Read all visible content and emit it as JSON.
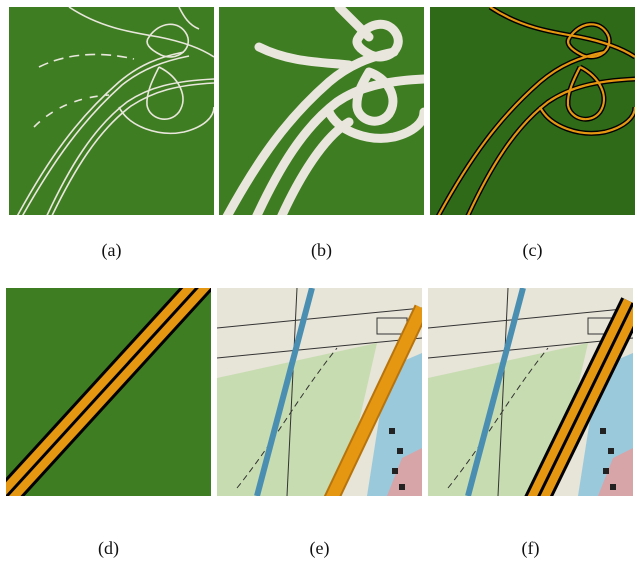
{
  "figure": {
    "panels": [
      {
        "id": "a",
        "caption": "(a)",
        "subject": "highway interchange rendered as thin white outline strokes on green terrain"
      },
      {
        "id": "b",
        "caption": "(b)",
        "subject": "highway interchange rendered as thick light-grey road ribbons on green terrain"
      },
      {
        "id": "c",
        "caption": "(c)",
        "subject": "highway interchange rendered as black-outlined orange roads on dark green terrain"
      },
      {
        "id": "d",
        "caption": "(d)",
        "subject": "close-up of a diagonal orange double road with black borders on green"
      },
      {
        "id": "e",
        "caption": "(e)",
        "subject": "close-up of a scanned paper map with a diagonal orange road overlay"
      },
      {
        "id": "f",
        "caption": "(f)",
        "subject": "close-up of the scanned paper map with orange road and black outline overlay"
      }
    ]
  },
  "colors": {
    "terrain": "#3f7d22",
    "terrain_dark": "#2f6a18",
    "road_white": "#e9e7dd",
    "road_orange": "#e59712",
    "road_outline": "#000000",
    "map_paper": "#e7e4d8",
    "map_green": "#c7dcb0",
    "map_blue": "#9bc9dc",
    "map_pink": "#d7a4a8"
  }
}
